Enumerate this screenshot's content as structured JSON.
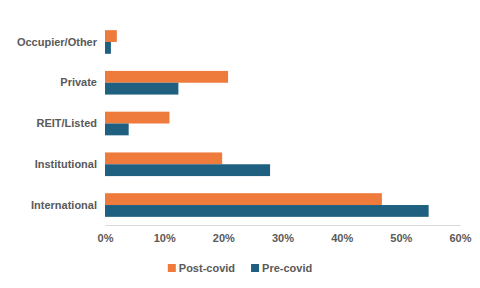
{
  "chart_data": {
    "type": "bar",
    "orientation": "horizontal",
    "categories": [
      "Occupier/Other",
      "Private",
      "REIT/Listed",
      "Institutional",
      "International"
    ],
    "series": [
      {
        "name": "Post-covid",
        "color": "#ee7a3b",
        "values": [
          2.0,
          20.8,
          10.9,
          19.8,
          46.8
        ]
      },
      {
        "name": "Pre-covid",
        "color": "#1f5f80",
        "values": [
          1.0,
          12.4,
          4.0,
          27.9,
          54.7
        ]
      }
    ],
    "xlim": [
      0,
      60
    ],
    "xticks": [
      {
        "value": 0,
        "label": "0%"
      },
      {
        "value": 10,
        "label": "10%"
      },
      {
        "value": 20,
        "label": "20%"
      },
      {
        "value": 30,
        "label": "30%"
      },
      {
        "value": 40,
        "label": "40%"
      },
      {
        "value": 50,
        "label": "50%"
      },
      {
        "value": 60,
        "label": "60%"
      }
    ],
    "grid": false,
    "legend": "bottom"
  }
}
